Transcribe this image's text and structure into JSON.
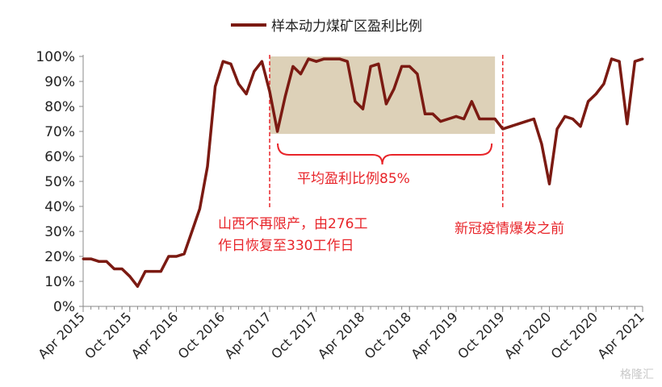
{
  "legend_label": "样本动力煤矿区盈利比例",
  "annotations": {
    "avg": "平均盈利比例85%",
    "shanxi_line1": "山西不再限产，由276工",
    "shanxi_line2": "作日恢复至330工作日",
    "pre_covid": "新冠疫情爆发之前"
  },
  "watermark": "格隆汇",
  "colors": {
    "line": "#7b1a12",
    "band": "#ddd1b8",
    "annotation": "#e8252a"
  },
  "chart_data": {
    "type": "line",
    "xlabel": "",
    "ylabel": "",
    "ylim": [
      0,
      100
    ],
    "yticks": [
      "0%",
      "10%",
      "20%",
      "30%",
      "40%",
      "50%",
      "60%",
      "70%",
      "80%",
      "90%",
      "100%"
    ],
    "xtick_labels": [
      "Apr 2015",
      "Oct 2015",
      "Apr 2016",
      "Oct 2016",
      "Apr 2017",
      "Oct 2017",
      "Apr 2018",
      "Oct 2018",
      "Apr 2019",
      "Oct 2019",
      "Apr 2020",
      "Oct 2020",
      "Apr 2021"
    ],
    "x_start": "Apr 2015",
    "x_step": "month",
    "series": [
      {
        "name": "样本动力煤矿区盈利比例",
        "values": [
          19,
          19,
          18,
          18,
          15,
          15,
          12,
          8,
          14,
          14,
          14,
          20,
          20,
          21,
          30,
          39,
          56,
          88,
          98,
          97,
          89,
          85,
          94,
          98,
          86,
          70,
          84,
          96,
          93,
          99,
          98,
          99,
          99,
          99,
          98,
          82,
          79,
          96,
          97,
          81,
          87,
          96,
          96,
          93,
          77,
          77,
          74,
          75,
          76,
          75,
          82,
          75,
          75,
          75,
          71,
          72,
          73,
          74,
          75,
          65,
          49,
          71,
          76,
          75,
          72,
          82,
          85,
          89,
          99,
          98,
          73,
          98,
          99
        ]
      }
    ],
    "band": {
      "from": "Apr 2017",
      "to": "Sep 2019",
      "ymin": 69,
      "ymax": 100
    },
    "vlines": [
      "Apr 2017",
      "Oct 2019"
    ]
  }
}
